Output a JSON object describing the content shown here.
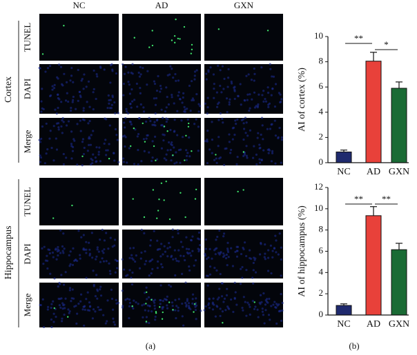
{
  "panel_a": {
    "columns": [
      "NC",
      "AD",
      "GXN"
    ],
    "groups": [
      {
        "name": "Cortex",
        "rows": [
          "TUNEL",
          "DAPI",
          "Merge"
        ]
      },
      {
        "name": "Hippocampus",
        "rows": [
          "TUNEL",
          "DAPI",
          "Merge"
        ]
      }
    ]
  },
  "chart_data": [
    {
      "type": "bar",
      "ylabel": "AI of cortex (%)",
      "categories": [
        "NC",
        "AD",
        "GXN"
      ],
      "values": [
        0.85,
        8.05,
        5.9
      ],
      "errors": [
        0.15,
        0.7,
        0.5
      ],
      "colors": [
        "#1f2a6e",
        "#e8413a",
        "#1a6b35"
      ],
      "ylim": [
        0,
        10
      ],
      "yticks": [
        0,
        2,
        4,
        6,
        8,
        10
      ],
      "annotations": [
        "**",
        "*"
      ]
    },
    {
      "type": "bar",
      "ylabel": "AI of hippocampus (%)",
      "categories": [
        "NC",
        "AD",
        "GXN"
      ],
      "values": [
        0.9,
        9.35,
        6.15
      ],
      "errors": [
        0.15,
        0.85,
        0.6
      ],
      "colors": [
        "#1f2a6e",
        "#e8413a",
        "#1a6b35"
      ],
      "ylim": [
        0,
        12
      ],
      "yticks": [
        0,
        2,
        4,
        6,
        8,
        10,
        12
      ],
      "annotations": [
        "**",
        "**"
      ]
    }
  ],
  "captions": [
    "(a)",
    "(b)"
  ]
}
